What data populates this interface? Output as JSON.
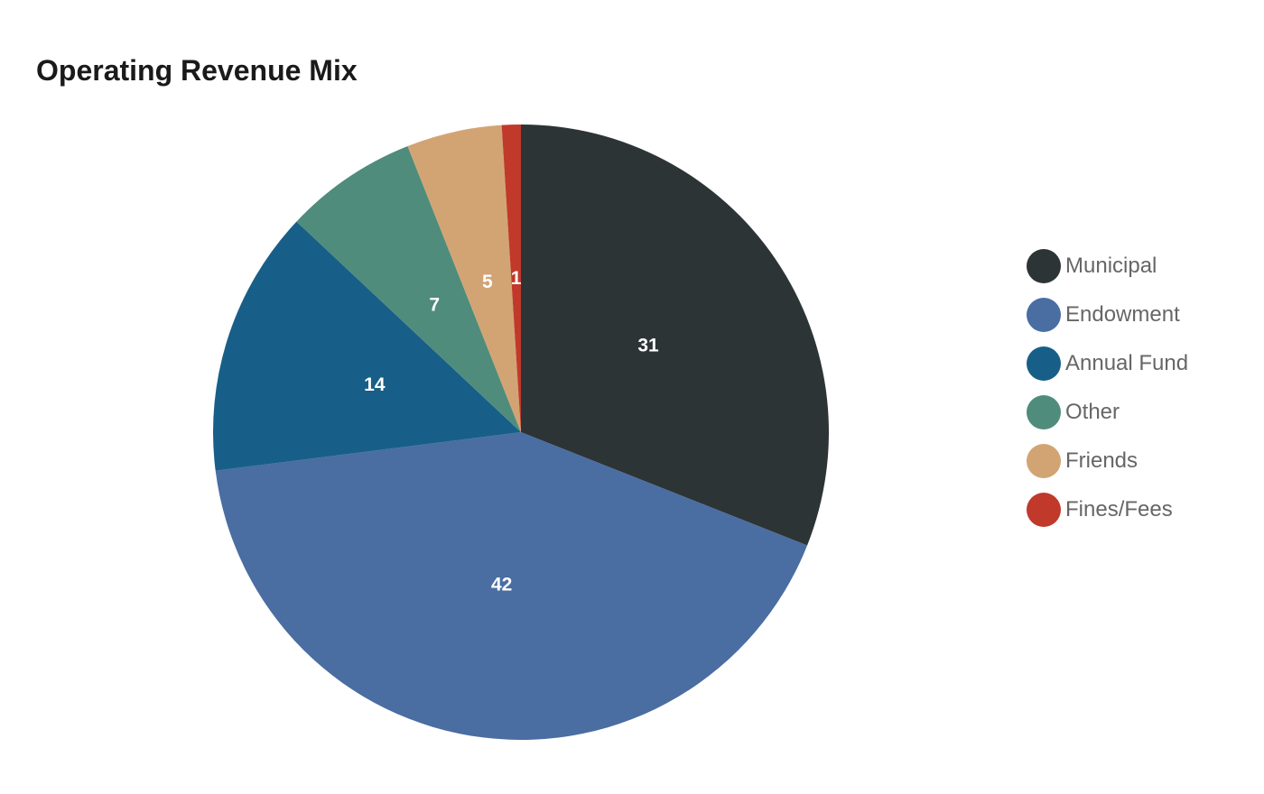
{
  "chart_data": {
    "type": "pie",
    "title": "Operating Revenue Mix",
    "categories": [
      "Municipal",
      "Endowment",
      "Annual Fund",
      "Other",
      "Friends",
      "Fines/Fees"
    ],
    "values": [
      31,
      42,
      14,
      7,
      5,
      1
    ],
    "colors": [
      "#2d3436",
      "#4a6da2",
      "#175f88",
      "#4f8c7b",
      "#d2a474",
      "#c0392b"
    ],
    "start": "top",
    "direction": "clockwise",
    "data_labels": true,
    "legend": "right"
  }
}
